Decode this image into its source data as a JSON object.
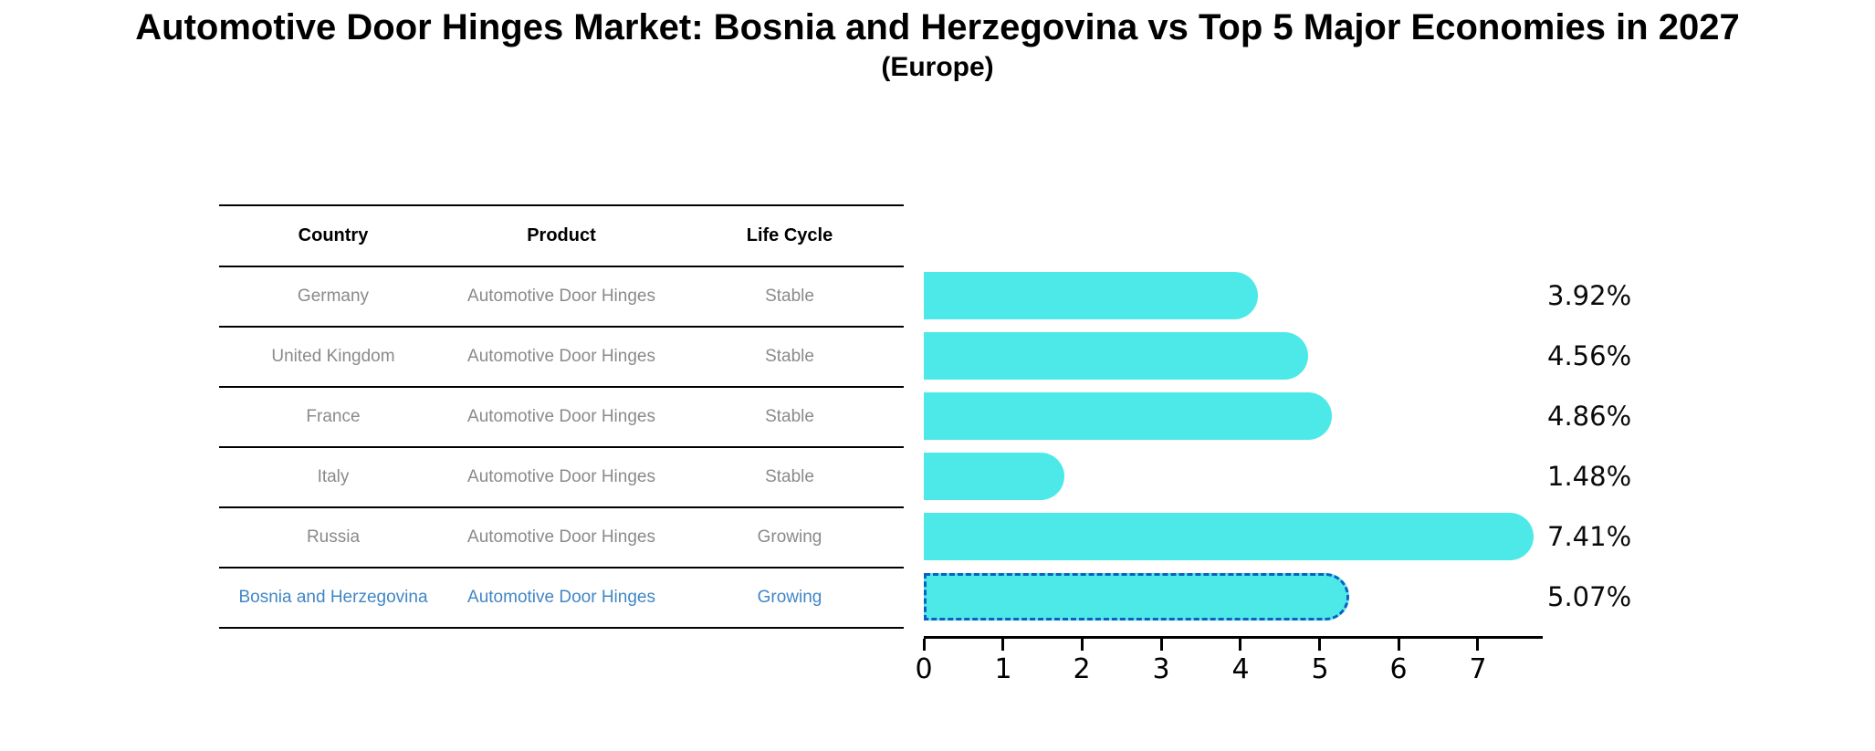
{
  "header": {
    "title": "Automotive Door Hinges Market: Bosnia and Herzegovina vs Top 5 Major Economies in 2027",
    "subtitle": "(Europe)"
  },
  "table": {
    "columns": [
      "Country",
      "Product",
      "Life Cycle"
    ],
    "rows": [
      {
        "country": "Germany",
        "product": "Automotive Door Hinges",
        "life_cycle": "Stable"
      },
      {
        "country": "United Kingdom",
        "product": "Automotive Door Hinges",
        "life_cycle": "Stable"
      },
      {
        "country": "France",
        "product": "Automotive Door Hinges",
        "life_cycle": "Stable"
      },
      {
        "country": "Italy",
        "product": "Automotive Door Hinges",
        "life_cycle": "Stable"
      },
      {
        "country": "Russia",
        "product": "Automotive Door Hinges",
        "life_cycle": "Growing"
      },
      {
        "country": "Bosnia and Herzegovina",
        "product": "Automotive Door Hinges",
        "life_cycle": "Growing"
      }
    ]
  },
  "chart_data": {
    "type": "bar",
    "orientation": "horizontal",
    "title": "Automotive Door Hinges Market: Bosnia and Herzegovina vs Top 5 Major Economies in 2027 (Europe)",
    "categories": [
      "Germany",
      "United Kingdom",
      "France",
      "Italy",
      "Russia",
      "Bosnia and Herzegovina"
    ],
    "values": [
      3.92,
      4.56,
      4.86,
      1.48,
      7.41,
      5.07
    ],
    "value_labels": [
      "3.92%",
      "4.56%",
      "4.86%",
      "1.48%",
      "7.41%",
      "5.07%"
    ],
    "x_ticks": [
      0,
      1,
      2,
      3,
      4,
      5,
      6,
      7
    ],
    "xlim": [
      0,
      7.82
    ],
    "grid": "off",
    "legend": "none",
    "bar_color": "#4de9e8",
    "highlight_color": "#1f78dd",
    "highlight_index": 5,
    "highlight_border_style": "dashed",
    "rounded_bar_ends": true
  }
}
